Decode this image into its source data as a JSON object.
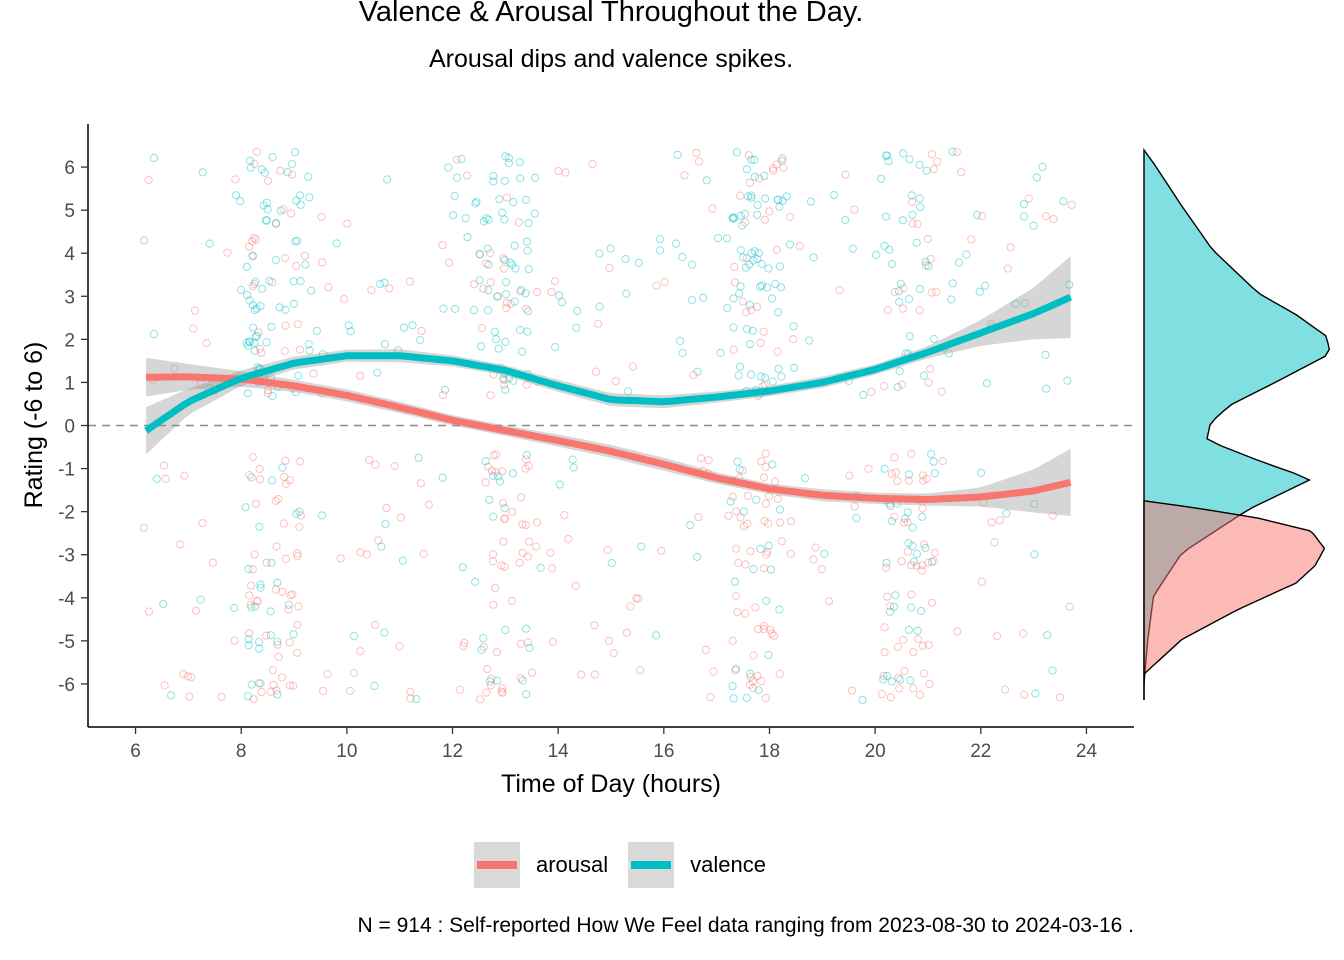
{
  "chart_data": {
    "type": "scatter",
    "title": "Valence & Arousal Throughout the Day.",
    "subtitle": "Arousal dips and valence spikes.",
    "xlabel": "Time of Day (hours)",
    "ylabel": "Rating (-6 to 6)",
    "xlim": [
      5.1,
      24.9
    ],
    "ylim": [
      -7,
      7
    ],
    "xticks": [
      6,
      8,
      10,
      12,
      14,
      16,
      18,
      20,
      22,
      24
    ],
    "yticks": [
      -6,
      -5,
      -4,
      -3,
      -2,
      -1,
      0,
      1,
      2,
      3,
      4,
      5,
      6
    ],
    "reference_line_y": 0,
    "caption": "N = 914 : Self-reported How We Feel data ranging from 2023-08-30 to 2024-03-16 .",
    "legend_position": "bottom",
    "series": [
      {
        "name": "arousal",
        "color": "#F8766D",
        "smooth": {
          "x": [
            6.2,
            7,
            8,
            9,
            10,
            11,
            12,
            13,
            14,
            15,
            16,
            17,
            18,
            19,
            20,
            21,
            22,
            23,
            23.7
          ],
          "y": [
            1.12,
            1.13,
            1.08,
            0.92,
            0.7,
            0.42,
            0.12,
            -0.12,
            -0.35,
            -0.6,
            -0.9,
            -1.22,
            -1.47,
            -1.62,
            -1.69,
            -1.72,
            -1.66,
            -1.52,
            -1.32
          ],
          "se": [
            0.45,
            0.3,
            0.18,
            0.14,
            0.14,
            0.13,
            0.12,
            0.12,
            0.14,
            0.15,
            0.15,
            0.13,
            0.12,
            0.14,
            0.13,
            0.14,
            0.22,
            0.5,
            0.78
          ]
        },
        "density": {
          "y": [
            -6.4,
            -5.8,
            -5.0,
            -4.3,
            -3.7,
            -3.3,
            -2.9,
            -2.5,
            -2.2,
            -1.95,
            -1.8
          ],
          "d": [
            0.0,
            0.0,
            0.2,
            0.5,
            0.8,
            0.9,
            0.95,
            0.88,
            0.6,
            0.25,
            0.0
          ]
        }
      },
      {
        "name": "valence",
        "color": "#00BFC4",
        "smooth": {
          "x": [
            6.2,
            7,
            8,
            9,
            10,
            11,
            12,
            13,
            14,
            15,
            16,
            17,
            18,
            19,
            20,
            21,
            22,
            23,
            23.7
          ],
          "y": [
            -0.12,
            0.55,
            1.1,
            1.45,
            1.62,
            1.62,
            1.5,
            1.28,
            0.92,
            0.6,
            0.55,
            0.66,
            0.8,
            1.0,
            1.3,
            1.7,
            2.15,
            2.6,
            2.98
          ],
          "se": [
            0.55,
            0.3,
            0.18,
            0.15,
            0.14,
            0.15,
            0.13,
            0.12,
            0.14,
            0.15,
            0.15,
            0.13,
            0.12,
            0.13,
            0.12,
            0.14,
            0.3,
            0.6,
            0.95
          ]
        },
        "density": {
          "y": [
            -6.4,
            -6.0,
            -5.0,
            -4.0,
            -3.0,
            -2.0,
            -1.3,
            -0.9,
            -0.4,
            0.0,
            0.4,
            1.0,
            1.6,
            2.0,
            2.5,
            3.0,
            4.0,
            5.0,
            6.0,
            6.3
          ],
          "d": [
            0.0,
            0.0,
            0.02,
            0.05,
            0.2,
            0.55,
            0.88,
            0.62,
            0.33,
            0.35,
            0.45,
            0.72,
            0.98,
            0.96,
            0.8,
            0.6,
            0.36,
            0.2,
            0.05,
            0.0
          ]
        }
      }
    ]
  }
}
